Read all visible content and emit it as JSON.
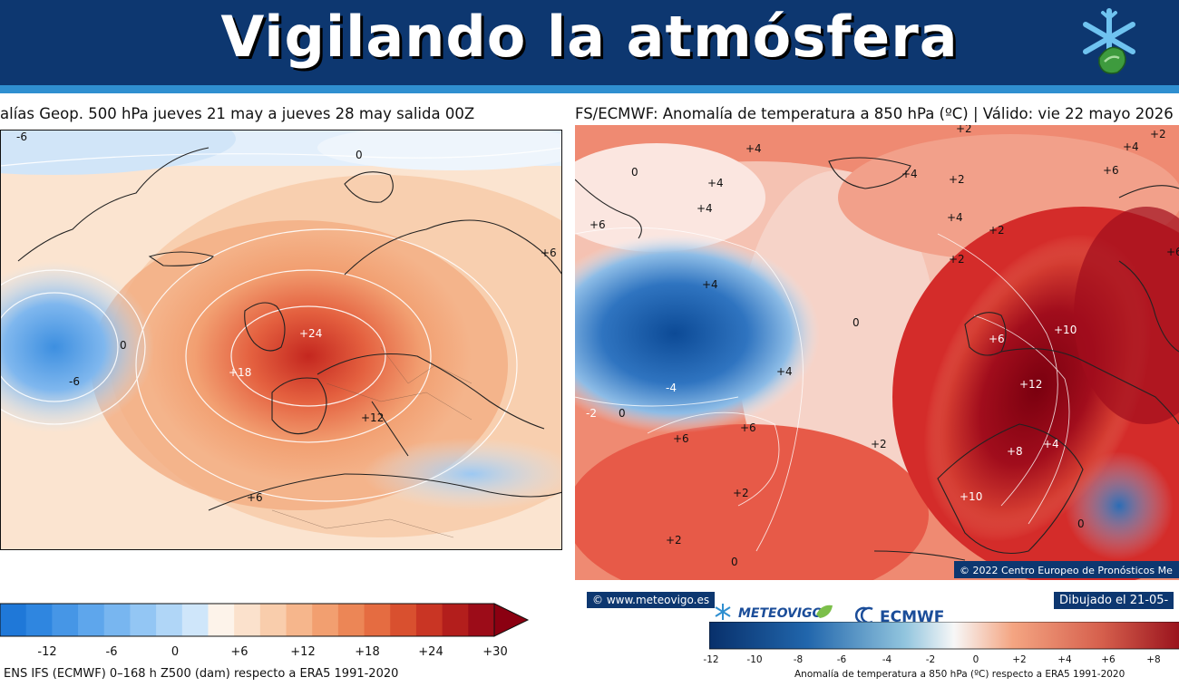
{
  "header": {
    "title": "Vigilando la atmósfera",
    "logo_icon": "snowflake-drop-logo-icon"
  },
  "left_panel": {
    "title": "alías Geop. 500 hPa jueves 21 may a jueves 28 may salida 00Z",
    "contour_labels": [
      "-6",
      "0",
      "0",
      "-6",
      "+24",
      "+18",
      "+12",
      "+6",
      "+6"
    ],
    "colorbar": {
      "ticks": [
        "-12",
        "-6",
        "0",
        "+6",
        "+12",
        "+18",
        "+24",
        "+30"
      ],
      "caption": "ENS IFS (ECMWF) 0–168 h Z500 (dam) respecto a ERA5 1991-2020"
    }
  },
  "right_panel": {
    "title": "FS/ECMWF: Anomalía de temperatura a 850 hPa (ºC) | Válido: vie 22 mayo 2026 21",
    "contour_labels": [
      "+2",
      "+4",
      "+4",
      "+2",
      "+6",
      "+4",
      "+2",
      "+4",
      "+6",
      "+6",
      "0",
      "+4",
      "+2",
      "+4",
      "-4",
      "-2",
      "0",
      "+6",
      "+6",
      "0",
      "+4",
      "+2",
      "+10",
      "+12",
      "+8",
      "+4",
      "+10",
      "+2",
      "0",
      "0",
      "+2",
      "+4",
      "+6",
      "+2"
    ],
    "copyright": "© 2022 Centro Europeo de Pronósticos Me",
    "website": "© www.meteovigo.es",
    "drawn": "Dibujado el 21-05-",
    "logo_meteovigo": "METEOVIGO",
    "logo_ecmwf": "ECMWF",
    "colorbar": {
      "ticks": [
        "-12",
        "-10",
        "-8",
        "-6",
        "-4",
        "-2",
        "0",
        "+2",
        "+4",
        "+6",
        "+8"
      ],
      "caption": "Anomalía de temperatura a 850 hPa (ºC) respecto a ERA5 1991-2020"
    }
  },
  "colors": {
    "banner": "#0d3770",
    "banner_strip": "#2f8fd0",
    "warm_max": "#8b0011",
    "cold_max": "#08306b"
  }
}
